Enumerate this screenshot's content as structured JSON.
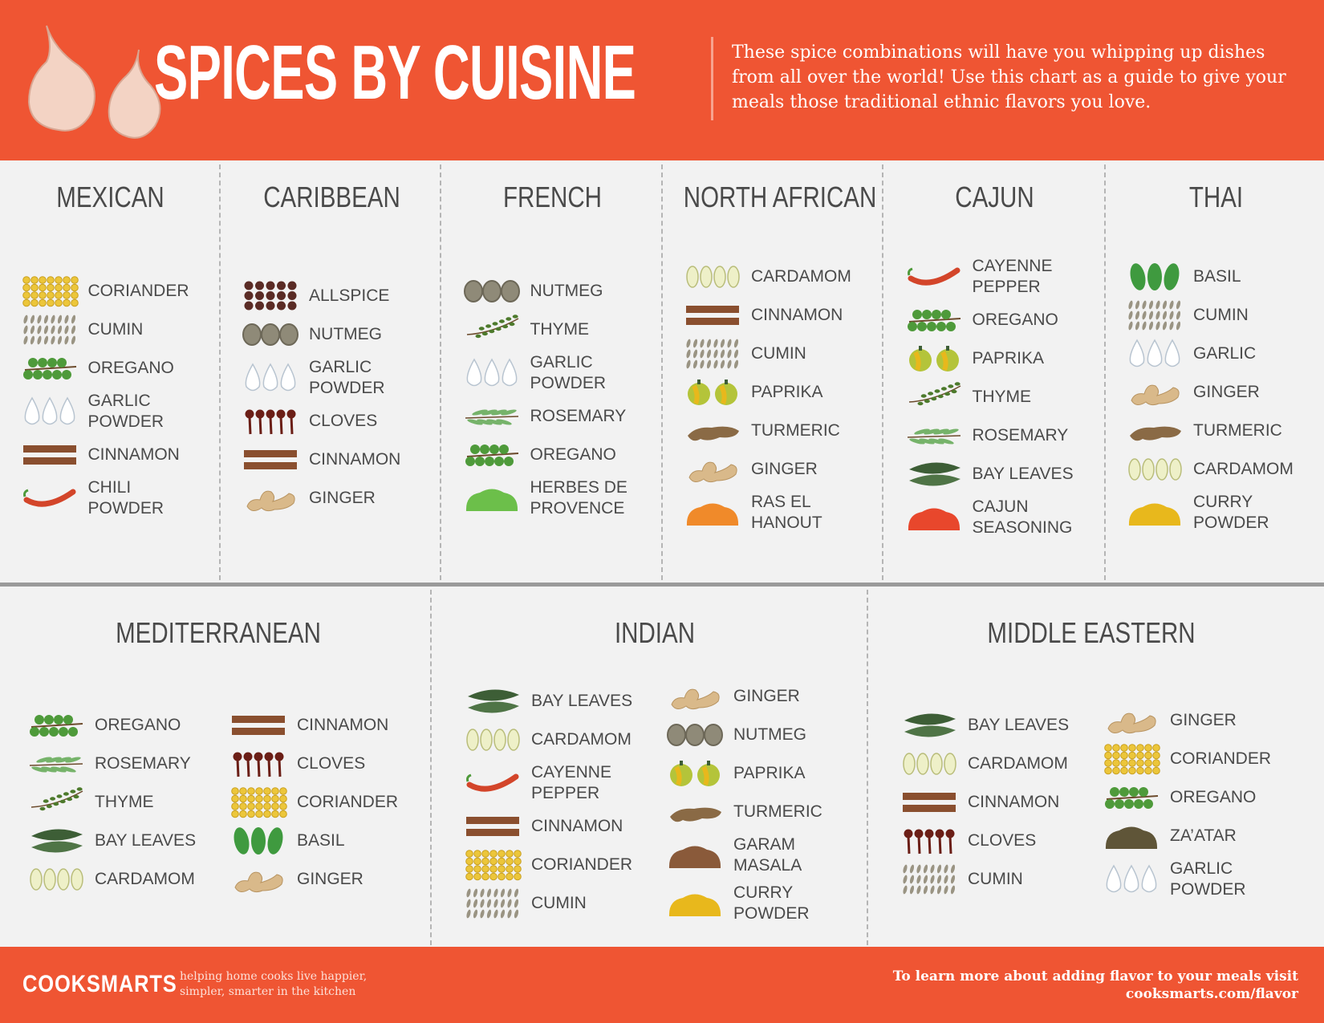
{
  "header": {
    "title": "SPICES BY CUISINE",
    "description": "These spice combinations will have you whipping up dishes from all over the world! Use this chart as a guide to give your meals those traditional ethnic flavors you love."
  },
  "top_row": [
    {
      "name": "MEXICAN",
      "spices": [
        "CORIANDER",
        "CUMIN",
        "OREGANO",
        "GARLIC POWDER",
        "CINNAMON",
        "CHILI POWDER"
      ]
    },
    {
      "name": "CARIBBEAN",
      "spices": [
        "ALLSPICE",
        "NUTMEG",
        "GARLIC POWDER",
        "CLOVES",
        "CINNAMON",
        "GINGER"
      ]
    },
    {
      "name": "FRENCH",
      "spices": [
        "NUTMEG",
        "THYME",
        "GARLIC POWDER",
        "ROSEMARY",
        "OREGANO",
        "HERBES DE PROVENCE"
      ]
    },
    {
      "name": "NORTH AFRICAN",
      "spices": [
        "CARDAMOM",
        "CINNAMON",
        "CUMIN",
        "PAPRIKA",
        "TURMERIC",
        "GINGER",
        "RAS EL HANOUT"
      ]
    },
    {
      "name": "CAJUN",
      "spices": [
        "CAYENNE PEPPER",
        "OREGANO",
        "PAPRIKA",
        "THYME",
        "ROSEMARY",
        "BAY LEAVES",
        "CAJUN SEASONING"
      ]
    },
    {
      "name": "THAI",
      "spices": [
        "BASIL",
        "CUMIN",
        "GARLIC",
        "GINGER",
        "TURMERIC",
        "CARDAMOM",
        "CURRY POWDER"
      ]
    }
  ],
  "bottom_row": [
    {
      "name": "MEDITERRANEAN",
      "columns": [
        [
          "OREGANO",
          "ROSEMARY",
          "THYME",
          "BAY LEAVES",
          "CARDAMOM"
        ],
        [
          "CINNAMON",
          "CLOVES",
          "CORIANDER",
          "BASIL",
          "GINGER"
        ]
      ]
    },
    {
      "name": "INDIAN",
      "columns": [
        [
          "BAY LEAVES",
          "CARDAMOM",
          "CAYENNE PEPPER",
          "CINNAMON",
          "CORIANDER",
          "CUMIN"
        ],
        [
          "GINGER",
          "NUTMEG",
          "PAPRIKA",
          "TURMERIC",
          "GARAM MASALA",
          "CURRY POWDER"
        ]
      ]
    },
    {
      "name": "MIDDLE EASTERN",
      "columns": [
        [
          "BAY LEAVES",
          "CARDAMOM",
          "CINNAMON",
          "CLOVES",
          "CUMIN"
        ],
        [
          "GINGER",
          "CORIANDER",
          "OREGANO",
          "ZA’ATAR",
          "GARLIC POWDER"
        ]
      ]
    }
  ],
  "footer": {
    "brand": "COOKSMARTS",
    "tagline": "helping home cooks live happier, simpler, smarter in the kitchen",
    "cta_text": "To learn more about adding flavor to your meals visit",
    "cta_url": "cooksmarts.com/flavor"
  }
}
